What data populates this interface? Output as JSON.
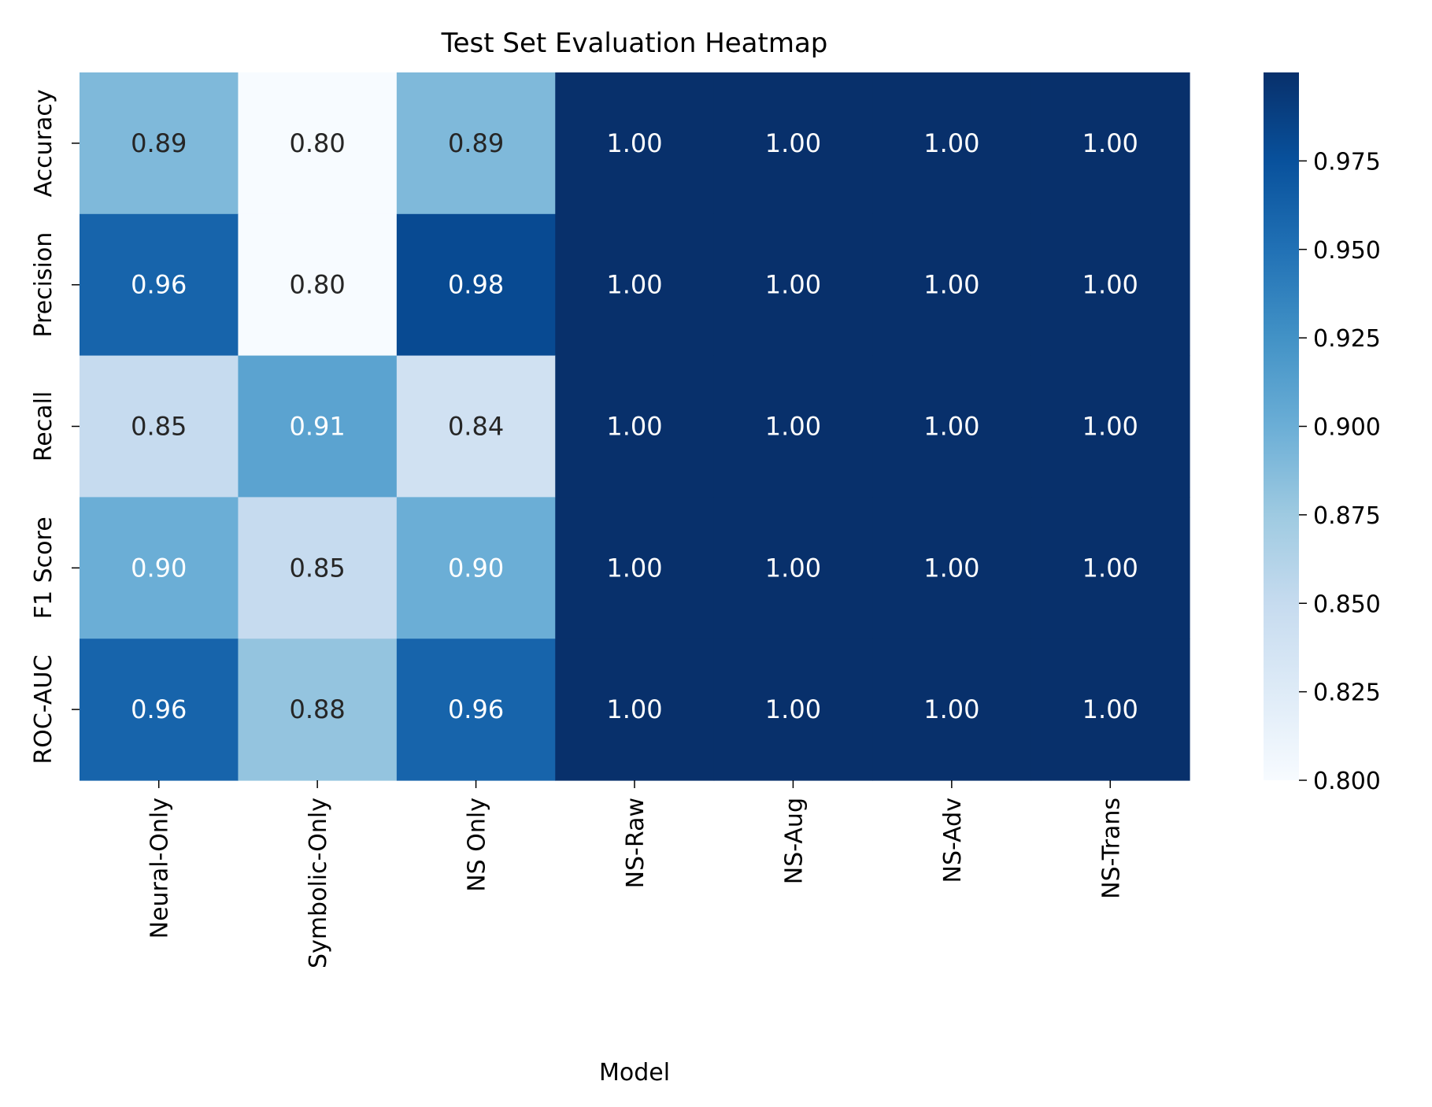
{
  "chart_data": {
    "type": "heatmap",
    "title": "Test Set Evaluation Heatmap",
    "xlabel": "Model",
    "ylabel": "",
    "x_categories": [
      "Neural-Only",
      "Symbolic-Only",
      "NS Only",
      "NS-Raw",
      "NS-Aug",
      "NS-Adv",
      "NS-Trans"
    ],
    "y_categories": [
      "Accuracy",
      "Precision",
      "Recall",
      "F1 Score",
      "ROC-AUC"
    ],
    "values": [
      [
        0.89,
        0.8,
        0.89,
        1.0,
        1.0,
        1.0,
        1.0
      ],
      [
        0.96,
        0.8,
        0.98,
        1.0,
        1.0,
        1.0,
        1.0
      ],
      [
        0.85,
        0.91,
        0.84,
        1.0,
        1.0,
        1.0,
        1.0
      ],
      [
        0.9,
        0.85,
        0.9,
        1.0,
        1.0,
        1.0,
        1.0
      ],
      [
        0.96,
        0.88,
        0.96,
        1.0,
        1.0,
        1.0,
        1.0
      ]
    ],
    "colormap": "Blues",
    "colorbar": {
      "vmin": 0.8,
      "vmax": 1.0,
      "ticks": [
        "0.800",
        "0.825",
        "0.850",
        "0.875",
        "0.900",
        "0.925",
        "0.950",
        "0.975"
      ]
    },
    "annotation_text_colors": {
      "dark_cell": "#ffffff",
      "light_cell": "#262626"
    }
  }
}
